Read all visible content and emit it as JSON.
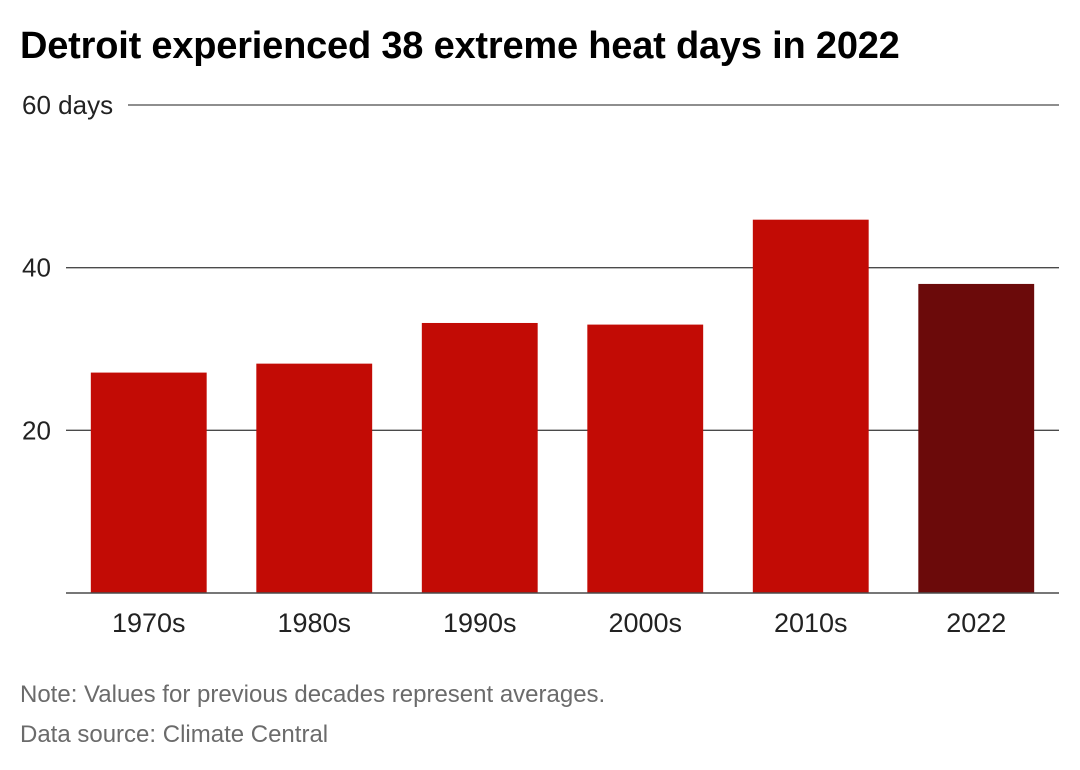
{
  "chart_data": {
    "type": "bar",
    "title": "Detroit experienced 38 extreme heat days in 2022",
    "xlabel": "",
    "ylabel": "",
    "categories": [
      "1970s",
      "1980s",
      "1990s",
      "2000s",
      "2010s",
      "2022"
    ],
    "values": [
      27.1,
      28.2,
      33.2,
      33.0,
      45.9,
      38
    ],
    "ylim": [
      0,
      60
    ],
    "yticks": [
      20,
      40,
      60
    ],
    "ytick_labels": [
      "20",
      "40",
      "60 days"
    ],
    "grid": true,
    "colors": {
      "bar": "#c20b05",
      "highlight": "#6b0a0a",
      "grid": "#4a4a4a",
      "axis": "#4a4a4a"
    },
    "highlight_category": "2022"
  },
  "notes": {
    "note": "Note: Values for previous decades represent averages.",
    "source": "Data source: Climate Central"
  }
}
